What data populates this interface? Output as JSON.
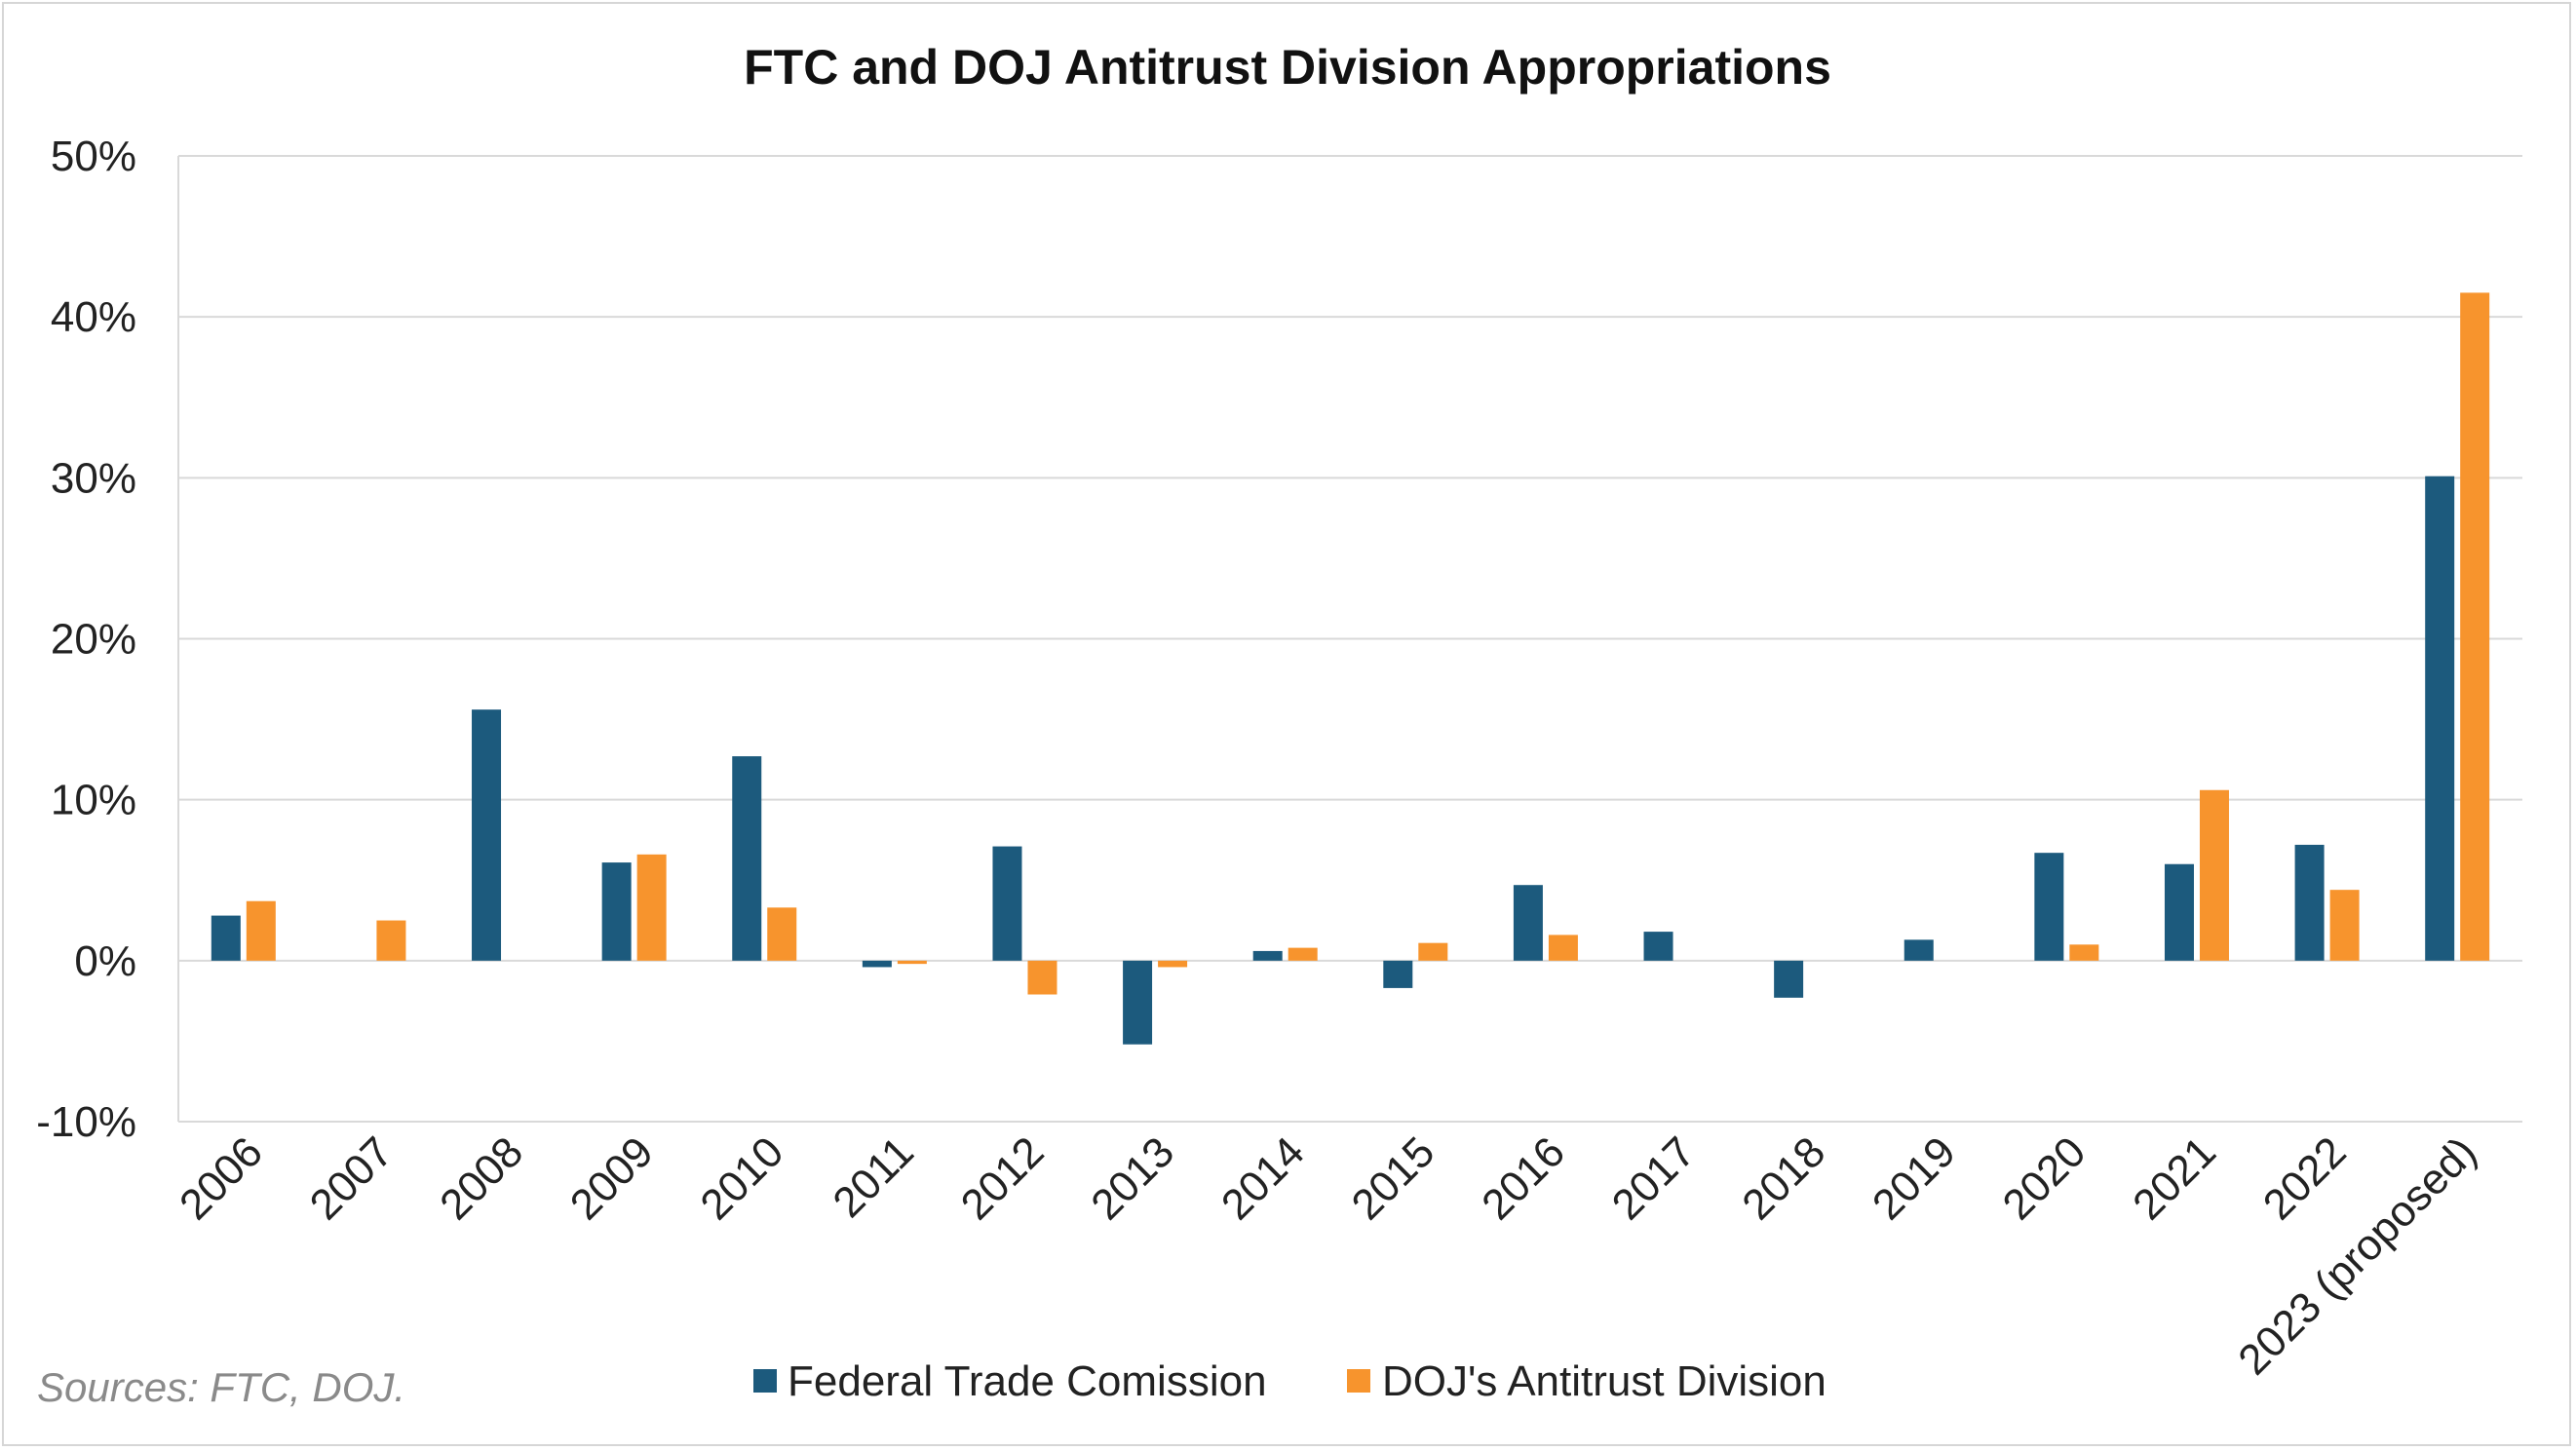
{
  "chart_data": {
    "type": "bar",
    "title": "FTC and DOJ Antitrust Division Appropriations",
    "xlabel": "",
    "ylabel": "",
    "ylim": [
      -10,
      50
    ],
    "yticks": [
      50,
      40,
      30,
      20,
      10,
      0,
      -10
    ],
    "ytick_labels": [
      "50%",
      "40%",
      "30%",
      "20%",
      "10%",
      "0%",
      "-10%"
    ],
    "grid": true,
    "legend_position": "bottom-center",
    "categories": [
      "2006",
      "2007",
      "2008",
      "2009",
      "2010",
      "2011",
      "2012",
      "2013",
      "2014",
      "2015",
      "2016",
      "2017",
      "2018",
      "2019",
      "2020",
      "2021",
      "2022",
      "2023 (proposed)"
    ],
    "series": [
      {
        "name": "Federal Trade Comission",
        "color": "#1c5a7d",
        "values": [
          2.8,
          0,
          15.6,
          6.1,
          12.7,
          -0.4,
          7.1,
          -5.2,
          0.6,
          -1.7,
          4.7,
          1.8,
          -2.3,
          1.3,
          6.7,
          6.0,
          7.2,
          30.1
        ]
      },
      {
        "name": "DOJ's Antitrust Division",
        "color": "#f7942d",
        "values": [
          3.7,
          2.5,
          0,
          6.6,
          3.3,
          -0.2,
          -2.1,
          -0.4,
          0.8,
          1.1,
          1.6,
          0,
          0,
          0,
          1.0,
          10.6,
          4.4,
          41.5
        ]
      }
    ],
    "source": "Sources: FTC, DOJ."
  }
}
